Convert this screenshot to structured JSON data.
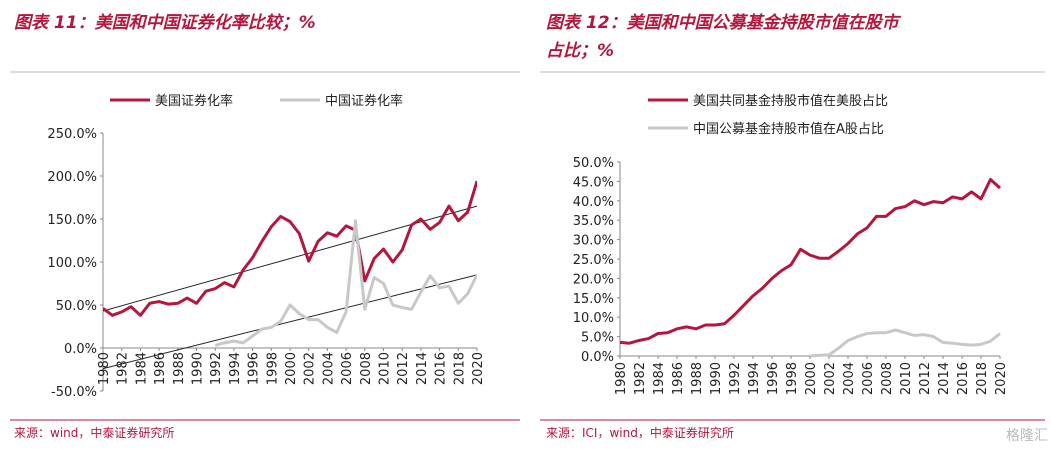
{
  "chart_data": [
    {
      "type": "line",
      "title": "图表 11：美国和中国证券化率比较；%",
      "x": [
        1980,
        1981,
        1982,
        1983,
        1984,
        1985,
        1986,
        1987,
        1988,
        1989,
        1990,
        1991,
        1992,
        1993,
        1994,
        1995,
        1996,
        1997,
        1998,
        1999,
        2000,
        2001,
        2002,
        2003,
        2004,
        2005,
        2006,
        2007,
        2008,
        2009,
        2010,
        2011,
        2012,
        2013,
        2014,
        2015,
        2016,
        2017,
        2018,
        2019,
        2020
      ],
      "xlim": [
        1980,
        2020
      ],
      "xticks": [
        1980,
        1982,
        1984,
        1986,
        1988,
        1990,
        1992,
        1994,
        1996,
        1998,
        2000,
        2002,
        2004,
        2006,
        2008,
        2010,
        2012,
        2014,
        2016,
        2018,
        2020
      ],
      "ylim": [
        -50,
        250
      ],
      "yticks": [
        {
          "value": -50,
          "label": "-50.0%"
        },
        {
          "value": 0,
          "label": "0.0%"
        },
        {
          "value": 50,
          "label": "50.0%"
        },
        {
          "value": 100,
          "label": "100.0%"
        },
        {
          "value": 150,
          "label": "150.0%"
        },
        {
          "value": 200,
          "label": "200.0%"
        },
        {
          "value": 250,
          "label": "250.0%"
        }
      ],
      "series": [
        {
          "name": "美国证券化率",
          "color": "#b5163c",
          "values": [
            46,
            38,
            42,
            48,
            38,
            52,
            54,
            51,
            52,
            58,
            52,
            66,
            69,
            76,
            71,
            91,
            105,
            124,
            141,
            153,
            147,
            133,
            101,
            124,
            134,
            130,
            142,
            137,
            78,
            104,
            115,
            100,
            114,
            143,
            150,
            138,
            146,
            165,
            148,
            158,
            194
          ]
        },
        {
          "name": "中国证券化率",
          "color": "#c8c8c8",
          "values": [
            null,
            null,
            null,
            null,
            null,
            null,
            null,
            null,
            null,
            null,
            null,
            null,
            3,
            6,
            8,
            6,
            14,
            22,
            24,
            31,
            50,
            40,
            33,
            33,
            24,
            18,
            42,
            148,
            45,
            82,
            75,
            50,
            47,
            45,
            65,
            84,
            70,
            72,
            52,
            63,
            85
          ]
        }
      ],
      "trendlines": [
        {
          "color": "#222222",
          "x": [
            1980,
            2020
          ],
          "values": [
            43,
            165
          ]
        },
        {
          "color": "#222222",
          "x": [
            1980,
            2020
          ],
          "values": [
            -24,
            85
          ]
        }
      ],
      "source": "来源：wind，中泰证券研究所"
    },
    {
      "type": "line",
      "title": "图表 12：美国和中国公募基金持股市值在股市占比；%",
      "x": [
        1980,
        1981,
        1982,
        1983,
        1984,
        1985,
        1986,
        1987,
        1988,
        1989,
        1990,
        1991,
        1992,
        1993,
        1994,
        1995,
        1996,
        1997,
        1998,
        1999,
        2000,
        2001,
        2002,
        2003,
        2004,
        2005,
        2006,
        2007,
        2008,
        2009,
        2010,
        2011,
        2012,
        2013,
        2014,
        2015,
        2016,
        2017,
        2018,
        2019,
        2020
      ],
      "xlim": [
        1980,
        2020
      ],
      "xticks": [
        1980,
        1982,
        1984,
        1986,
        1988,
        1990,
        1992,
        1994,
        1996,
        1998,
        2000,
        2002,
        2004,
        2006,
        2008,
        2010,
        2012,
        2014,
        2016,
        2018,
        2020
      ],
      "ylim": [
        0,
        50
      ],
      "yticks": [
        {
          "value": 0,
          "label": "0.0%"
        },
        {
          "value": 5,
          "label": "5.0%"
        },
        {
          "value": 10,
          "label": "10.0%"
        },
        {
          "value": 15,
          "label": "15.0%"
        },
        {
          "value": 20,
          "label": "20.0%"
        },
        {
          "value": 25,
          "label": "25.0%"
        },
        {
          "value": 30,
          "label": "30.0%"
        },
        {
          "value": 35,
          "label": "35.0%"
        },
        {
          "value": 40,
          "label": "40.0%"
        },
        {
          "value": 45,
          "label": "45.0%"
        },
        {
          "value": 50,
          "label": "50.0%"
        }
      ],
      "series": [
        {
          "name": "美国共同基金持股市值在美股占比",
          "color": "#b5163c",
          "values": [
            3.5,
            3.3,
            4,
            4.5,
            5.8,
            6,
            7,
            7.5,
            7,
            8,
            8,
            8.3,
            10.5,
            13,
            15.5,
            17.5,
            20,
            22,
            23.5,
            27.5,
            26,
            25.2,
            25.2,
            27,
            29,
            31.5,
            33,
            36,
            36,
            38,
            38.5,
            40,
            39,
            39.8,
            39.5,
            41,
            40.5,
            42.3,
            40.5,
            45.5,
            43.3
          ]
        },
        {
          "name": "中国公募基金持股市值在A股占比",
          "color": "#c8c8c8",
          "values": [
            null,
            null,
            null,
            null,
            null,
            null,
            null,
            null,
            null,
            null,
            null,
            null,
            null,
            null,
            null,
            null,
            null,
            null,
            null,
            null,
            0,
            0.2,
            0.3,
            2,
            4,
            5,
            5.8,
            6,
            6,
            6.7,
            6,
            5.3,
            5.5,
            5,
            3.5,
            3.3,
            3,
            2.8,
            3,
            3.8,
            5.8
          ]
        }
      ],
      "source": "来源：ICI，wind，中泰证券研究所"
    }
  ],
  "watermark": "格隆汇"
}
